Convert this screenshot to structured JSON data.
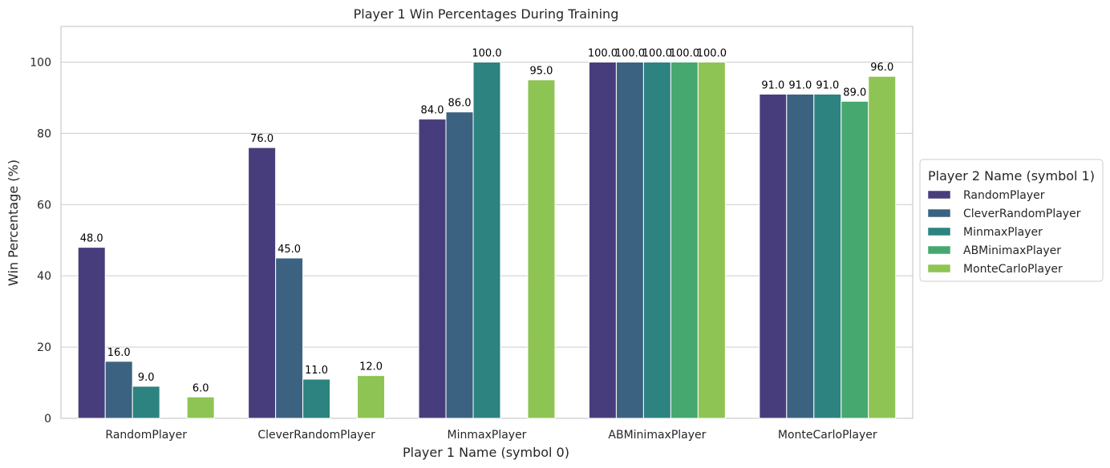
{
  "chart_data": {
    "type": "bar",
    "title": "Player 1 Win Percentages During Training",
    "xlabel": "Player 1 Name (symbol 0)",
    "ylabel": "Win Percentage (%)",
    "ylim": [
      0,
      110
    ],
    "yticks": [
      0,
      20,
      40,
      60,
      80,
      100
    ],
    "grid": true,
    "legend_title": "Player 2 Name (symbol 1)",
    "legend_position": "center-right outside",
    "categories": [
      "RandomPlayer",
      "CleverRandomPlayer",
      "MinmaxPlayer",
      "ABMinimaxPlayer",
      "MonteCarloPlayer"
    ],
    "series": [
      {
        "name": "RandomPlayer",
        "color": "#483d7c",
        "values": [
          48.0,
          76.0,
          84.0,
          100.0,
          91.0
        ],
        "labels": [
          "48.0",
          "76.0",
          "84.0",
          "100.0",
          "91.0"
        ]
      },
      {
        "name": "CleverRandomPlayer",
        "color": "#3b6381",
        "values": [
          16.0,
          45.0,
          86.0,
          100.0,
          91.0
        ],
        "labels": [
          "16.0",
          "45.0",
          "86.0",
          "100.0",
          "91.0"
        ]
      },
      {
        "name": "MinmaxPlayer",
        "color": "#2c837f",
        "values": [
          9.0,
          11.0,
          100.0,
          100.0,
          91.0
        ],
        "labels": [
          "9.0",
          "11.0",
          "100.0",
          "100.0",
          "91.0"
        ]
      },
      {
        "name": "ABMinimaxPlayer",
        "color": "#46a86f",
        "values": [
          null,
          null,
          null,
          100.0,
          89.0
        ],
        "labels": [
          null,
          null,
          null,
          "100.0",
          "89.0"
        ]
      },
      {
        "name": "MonteCarloPlayer",
        "color": "#8ec453",
        "values": [
          6.0,
          12.0,
          95.0,
          100.0,
          96.0
        ],
        "labels": [
          "6.0",
          "12.0",
          "95.0",
          "100.0",
          "96.0"
        ]
      }
    ]
  }
}
